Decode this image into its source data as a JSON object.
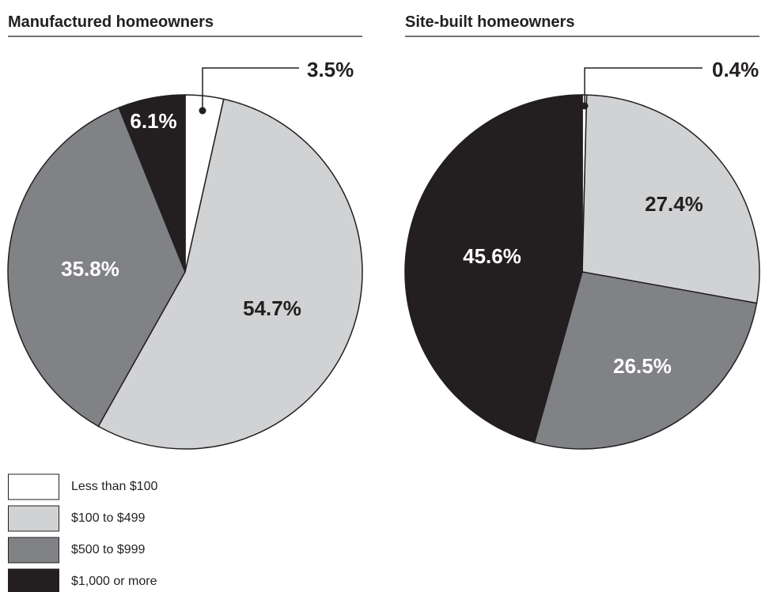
{
  "chart_data": [
    {
      "type": "pie",
      "title": "Manufactured homeowners",
      "values": [
        3.5,
        54.7,
        35.8,
        6.1
      ],
      "value_labels": [
        "3.5%",
        "54.7%",
        "35.8%",
        "6.1%"
      ]
    },
    {
      "type": "pie",
      "title": "Site-built homeowners",
      "values": [
        0.4,
        27.4,
        26.5,
        45.6
      ],
      "value_labels": [
        "0.4%",
        "27.4%",
        "26.5%",
        "45.6%"
      ]
    }
  ],
  "legend": {
    "categories": [
      "Less than $100",
      "$100 to $499",
      "$500 to $999",
      "$1,000 or more"
    ],
    "colors": [
      "#ffffff",
      "#d1d2d4",
      "#808285",
      "#231f20"
    ]
  }
}
